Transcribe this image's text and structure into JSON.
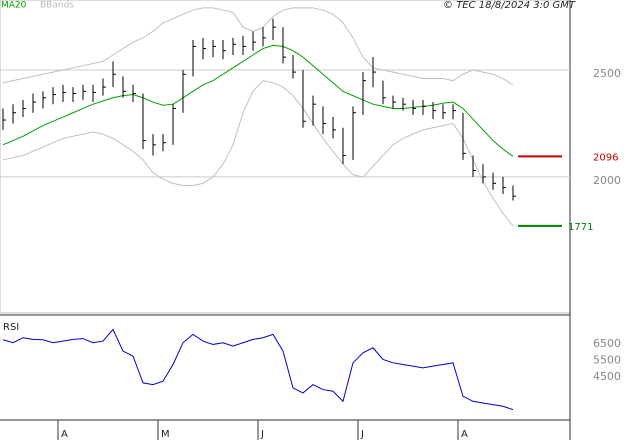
{
  "chart_data": [
    {
      "type": "ohlc",
      "source": "© TEC 18/8/2024 3:0 GMT",
      "categories": [
        null,
        null,
        null,
        null,
        null,
        null,
        "A",
        null,
        null,
        null,
        null,
        null,
        null,
        null,
        null,
        null,
        "M",
        null,
        null,
        null,
        null,
        null,
        null,
        null,
        null,
        null,
        "J",
        null,
        null,
        null,
        null,
        null,
        null,
        null,
        null,
        null,
        "J",
        null,
        null,
        null,
        null,
        null,
        null,
        null,
        null,
        null,
        "A",
        null,
        null,
        null,
        null,
        null
      ],
      "price": {
        "color": "#000000",
        "high": [
          2320,
          2340,
          2360,
          2390,
          2400,
          2420,
          2430,
          2420,
          2430,
          2430,
          2460,
          2540,
          2470,
          2430,
          2390,
          2200,
          2200,
          2340,
          2500,
          2640,
          2650,
          2640,
          2640,
          2650,
          2660,
          2680,
          2700,
          2740,
          2700,
          2570,
          2500,
          2380,
          2330,
          2280,
          2230,
          2330,
          2490,
          2560,
          2450,
          2380,
          2370,
          2360,
          2360,
          2350,
          2340,
          2340,
          2300,
          2100,
          2060,
          2020,
          2000,
          1960
        ],
        "low": [
          2220,
          2250,
          2280,
          2300,
          2320,
          2340,
          2350,
          2350,
          2360,
          2350,
          2380,
          2420,
          2370,
          2350,
          2130,
          2100,
          2120,
          2150,
          2300,
          2470,
          2550,
          2560,
          2550,
          2570,
          2570,
          2590,
          2610,
          2640,
          2530,
          2460,
          2230,
          2240,
          2200,
          2180,
          2060,
          2080,
          2290,
          2420,
          2340,
          2320,
          2310,
          2290,
          2290,
          2270,
          2270,
          2270,
          2080,
          2000,
          1970,
          1940,
          1920,
          1890
        ],
        "close": [
          2266,
          2300,
          2320,
          2350,
          2370,
          2385,
          2395,
          2390,
          2400,
          2395,
          2420,
          2480,
          2400,
          2390,
          2170,
          2150,
          2160,
          2320,
          2480,
          2610,
          2600,
          2610,
          2590,
          2620,
          2610,
          2630,
          2650,
          2700,
          2560,
          2490,
          2260,
          2340,
          2250,
          2220,
          2100,
          2300,
          2450,
          2490,
          2370,
          2350,
          2340,
          2320,
          2330,
          2310,
          2300,
          2310,
          2110,
          2030,
          2000,
          1970,
          1950,
          1910
        ]
      },
      "ma": {
        "name": "MA20",
        "color": "#00a000",
        "marker_color": "#c00000",
        "values": [
          2150,
          2170,
          2190,
          2215,
          2240,
          2260,
          2280,
          2300,
          2320,
          2340,
          2355,
          2370,
          2380,
          2385,
          2370,
          2350,
          2335,
          2340,
          2370,
          2400,
          2430,
          2450,
          2480,
          2510,
          2540,
          2570,
          2600,
          2615,
          2610,
          2590,
          2560,
          2520,
          2480,
          2440,
          2400,
          2380,
          2360,
          2340,
          2330,
          2320,
          2320,
          2325,
          2330,
          2335,
          2345,
          2350,
          2320,
          2270,
          2220,
          2170,
          2130,
          2096
        ]
      },
      "bbands": {
        "name": "BBands",
        "color": "#c0c0c0",
        "marker_color": "#008000",
        "upper": [
          2440,
          2450,
          2460,
          2470,
          2480,
          2490,
          2500,
          2510,
          2520,
          2530,
          2540,
          2570,
          2600,
          2630,
          2650,
          2680,
          2720,
          2740,
          2760,
          2780,
          2790,
          2790,
          2780,
          2770,
          2700,
          2680,
          2700,
          2750,
          2780,
          2790,
          2790,
          2790,
          2780,
          2760,
          2720,
          2650,
          2560,
          2510,
          2500,
          2490,
          2480,
          2470,
          2460,
          2460,
          2460,
          2450,
          2480,
          2500,
          2490,
          2480,
          2460,
          2430
        ],
        "lower": [
          2080,
          2090,
          2100,
          2120,
          2140,
          2160,
          2180,
          2190,
          2200,
          2210,
          2200,
          2180,
          2150,
          2120,
          2080,
          2020,
          1990,
          1970,
          1960,
          1960,
          1970,
          2000,
          2060,
          2150,
          2300,
          2400,
          2450,
          2440,
          2420,
          2380,
          2320,
          2250,
          2180,
          2120,
          2060,
          2010,
          2000,
          2050,
          2100,
          2150,
          2180,
          2200,
          2220,
          2230,
          2240,
          2250,
          2180,
          2080,
          1980,
          1900,
          1830,
          1771
        ]
      },
      "ylim": [
        1364,
        2827
      ],
      "yticks": [
        2000,
        2500
      ],
      "grid": true
    },
    {
      "type": "line",
      "title": "RSI",
      "series": [
        {
          "color": "#0000cc",
          "values": [
            6680,
            6500,
            6800,
            6700,
            6680,
            6500,
            6600,
            6700,
            6750,
            6500,
            6600,
            7300,
            6000,
            5700,
            4100,
            4000,
            4200,
            5200,
            6500,
            7000,
            6600,
            6400,
            6500,
            6300,
            6500,
            6700,
            6800,
            7000,
            6000,
            3800,
            3500,
            4000,
            3700,
            3600,
            3000,
            5300,
            5900,
            6200,
            5500,
            5300,
            5200,
            5100,
            5000,
            5100,
            5200,
            5300,
            3300,
            3000,
            2900,
            2800,
            2700,
            2500
          ]
        }
      ],
      "ylim": [
        2000,
        8100
      ],
      "yticks": [
        4500,
        5500,
        6500
      ],
      "grid": false
    }
  ]
}
